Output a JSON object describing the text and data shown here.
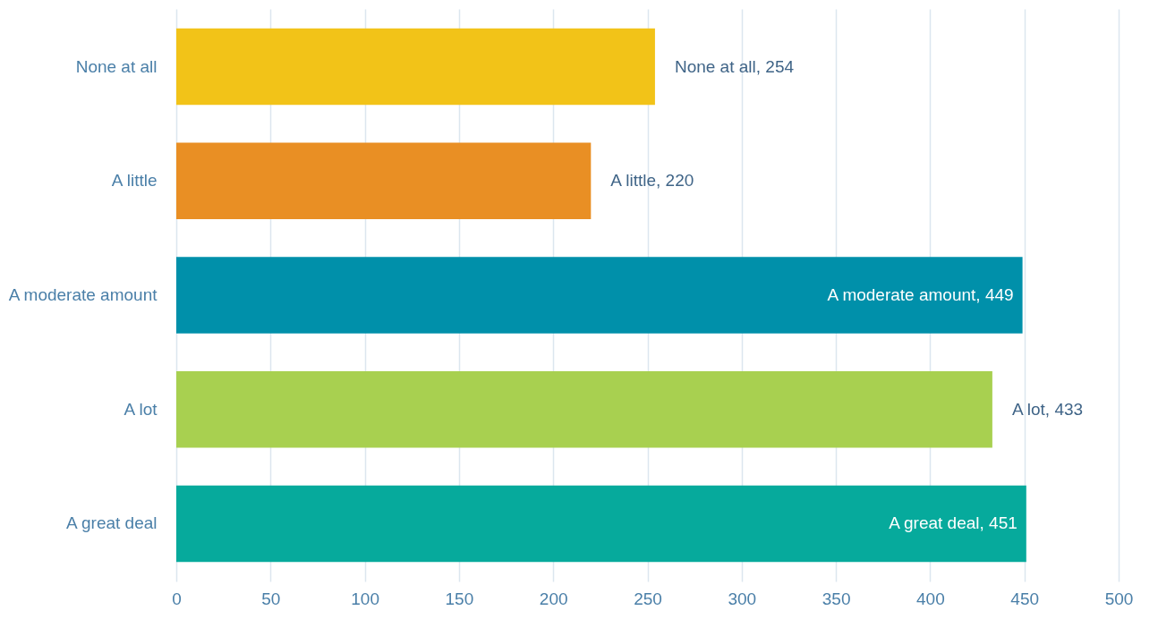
{
  "chart_data": {
    "type": "bar",
    "orientation": "horizontal",
    "categories": [
      "None at all",
      "A little",
      "A moderate amount",
      "A lot",
      "A great deal"
    ],
    "values": [
      254,
      220,
      449,
      433,
      451
    ],
    "colors": [
      "#f2c318",
      "#e98f24",
      "#0090aa",
      "#a8d050",
      "#06aa9c"
    ],
    "value_labels": [
      "None at all, 254",
      "A little, 220",
      "A moderate amount, 449",
      "A lot, 433",
      "A great deal, 451"
    ],
    "xlim": [
      0,
      500
    ],
    "xticks": [
      0,
      50,
      100,
      150,
      200,
      250,
      300,
      350,
      400,
      450,
      500
    ],
    "grid": "x",
    "legend": false
  }
}
